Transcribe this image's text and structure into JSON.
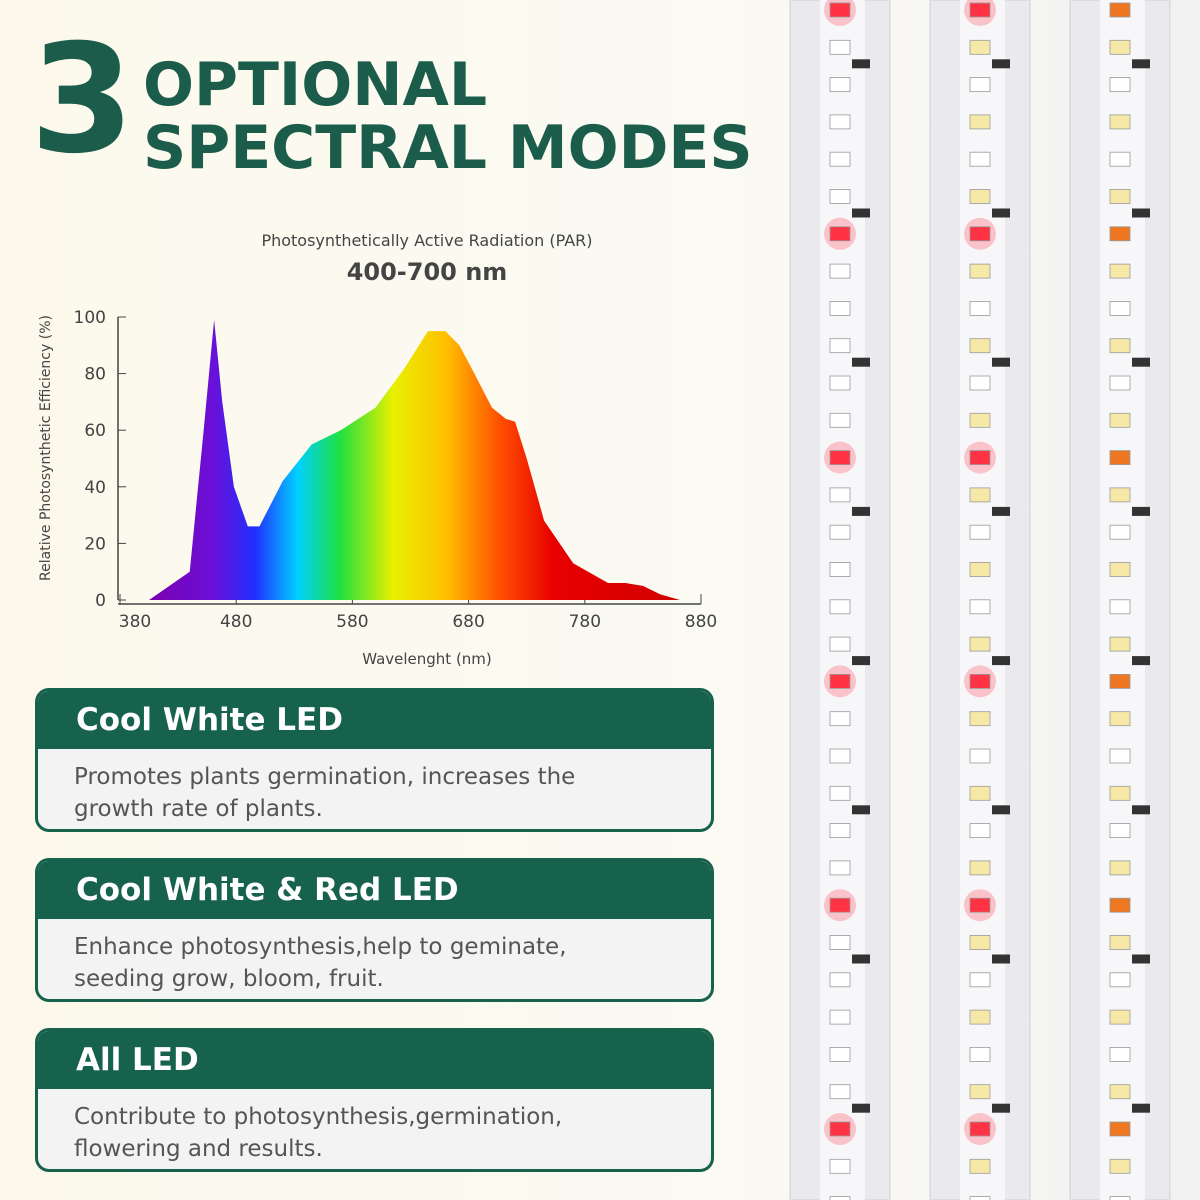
{
  "header": {
    "number": "3",
    "line1": "OPTIONAL",
    "line2": "SPECTRAL MODES"
  },
  "chart_data": {
    "type": "area",
    "title": "Photosynthetically Active Radiation (PAR)",
    "subtitle": "400-700 nm",
    "x_label": "Wavelenght (nm)",
    "y_label": "Relative Photosynthetic Efficiency (%)",
    "x": [
      405,
      440,
      452,
      461,
      468,
      478,
      490,
      500,
      520,
      545,
      570,
      600,
      625,
      645,
      660,
      672,
      685,
      700,
      712,
      720,
      730,
      745,
      770,
      800,
      815,
      830,
      845,
      862
    ],
    "values": [
      0,
      10,
      60,
      99,
      70,
      40,
      26,
      26,
      42,
      55,
      60,
      68,
      82,
      95,
      95,
      90,
      80,
      68,
      64,
      63,
      50,
      28,
      13,
      6,
      6,
      5,
      2,
      0
    ],
    "xlim": [
      380,
      880
    ],
    "xticks": [
      380,
      480,
      580,
      680,
      780,
      880
    ],
    "ylim": [
      0,
      100
    ],
    "yticks": [
      0,
      20,
      40,
      60,
      80,
      100
    ]
  },
  "cards": [
    {
      "title": "Cool White LED",
      "text": "Promotes plants germination, increases the growth rate of plants."
    },
    {
      "title": "Cool White & Red LED",
      "text": "Enhance photosynthesis,help to geminate, seeding grow, bloom, fruit."
    },
    {
      "title": "All LED",
      "text": "Contribute to photosynthesis,germination, flowering and results."
    }
  ]
}
